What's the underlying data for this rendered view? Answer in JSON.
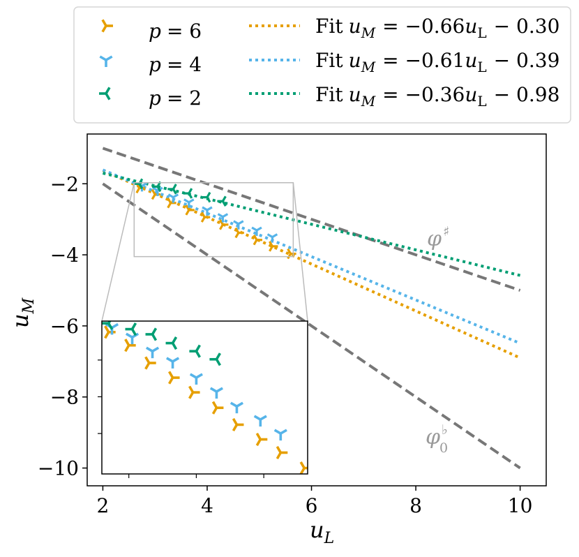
{
  "chart_data": {
    "type": "scatter",
    "title": "",
    "xlabel": {
      "base": "u",
      "sub": "L"
    },
    "ylabel": {
      "base": "u",
      "sub": "M"
    },
    "xlim": [
      1.7,
      10.5
    ],
    "ylim": [
      -10.5,
      -0.6
    ],
    "x_ticks": [
      2,
      4,
      6,
      8,
      10
    ],
    "y_ticks": [
      -2,
      -4,
      -6,
      -8,
      -10
    ],
    "x_tick_labels": [
      "2",
      "4",
      "6",
      "8",
      "10"
    ],
    "y_tick_labels": [
      "−2",
      "−4",
      "−6",
      "−8",
      "−10"
    ],
    "grid": false,
    "legend_position": "top",
    "series": [
      {
        "name": "p = 6",
        "legend_var": "p",
        "legend_eq": "= 6",
        "color": "#E69F00",
        "marker": "tri-right",
        "x": [
          2.7,
          3.0,
          3.3,
          3.65,
          3.95,
          4.3,
          4.6,
          4.95,
          5.25,
          5.6
        ],
        "y": [
          -2.12,
          -2.3,
          -2.54,
          -2.74,
          -2.94,
          -3.15,
          -3.38,
          -3.58,
          -3.76,
          -3.97
        ]
      },
      {
        "name": "p = 4",
        "legend_var": "p",
        "legend_eq": "= 4",
        "color": "#56B4E9",
        "marker": "tri-down",
        "x": [
          2.75,
          3.05,
          3.35,
          3.65,
          4.0,
          4.3,
          4.6,
          4.95,
          5.25
        ],
        "y": [
          -2.06,
          -2.19,
          -2.38,
          -2.52,
          -2.74,
          -2.93,
          -3.13,
          -3.31,
          -3.5
        ]
      },
      {
        "name": "p = 2",
        "legend_var": "p",
        "legend_eq": "= 2",
        "color": "#009E73",
        "marker": "tri-left",
        "x": [
          2.7,
          3.05,
          3.35,
          3.65,
          4.0,
          4.3
        ],
        "y": [
          -2.0,
          -2.08,
          -2.15,
          -2.27,
          -2.38,
          -2.49
        ]
      }
    ],
    "fits": [
      {
        "name": "Fit u_M = −0.66u_L − 0.30",
        "label_text": "Fit",
        "lhs_base": "u",
        "lhs_sub": "M",
        "eq": "= −0.66",
        "rhs_base": "u",
        "rhs_sub": "L",
        "tail": "− 0.30",
        "slope": -0.66,
        "intercept": -0.3,
        "color": "#E69F00",
        "style": "dotted"
      },
      {
        "name": "Fit u_M = −0.61u_L − 0.39",
        "label_text": "Fit",
        "lhs_base": "u",
        "lhs_sub": "M",
        "eq": "= −0.61",
        "rhs_base": "u",
        "rhs_sub": "L",
        "tail": "− 0.39",
        "slope": -0.61,
        "intercept": -0.39,
        "color": "#56B4E9",
        "style": "dotted"
      },
      {
        "name": "Fit u_M = −0.36u_L − 0.98",
        "label_text": "Fit",
        "lhs_base": "u",
        "lhs_sub": "M",
        "eq": "= −0.36",
        "rhs_base": "u",
        "rhs_sub": "L",
        "tail": "− 0.98",
        "slope": -0.36,
        "intercept": -0.98,
        "color": "#009E73",
        "style": "dotted"
      }
    ],
    "reference_lines": [
      {
        "name": "upper bound",
        "x": [
          2,
          10
        ],
        "y": [
          -1.0,
          -5.0
        ],
        "color": "#777777",
        "style": "dashed"
      },
      {
        "name": "lower bound",
        "x": [
          2,
          10
        ],
        "y": [
          -2.0,
          -10.0
        ],
        "color": "#777777",
        "style": "dashed"
      }
    ],
    "annotations": [
      {
        "name": "phi-sharp",
        "base": "φ",
        "sup": "♯",
        "sub": "",
        "x": 8.15,
        "y": -3.5,
        "color": "#999999"
      },
      {
        "name": "phi-flat-0",
        "base": "φ",
        "sup": "♭",
        "sub": "0",
        "x": 8.15,
        "y": -9.3,
        "color": "#999999"
      }
    ],
    "inset": {
      "zoom_xlim": [
        2.6,
        5.65
      ],
      "zoom_ylim": [
        -4.05,
        -1.97
      ],
      "frame_color": "#bbbbbb"
    }
  }
}
